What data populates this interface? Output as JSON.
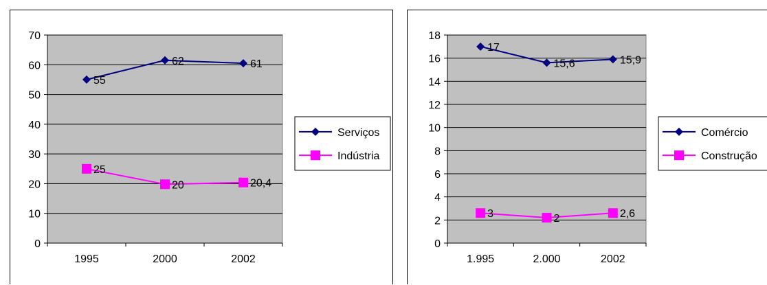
{
  "chart_data": [
    {
      "type": "line",
      "categories": [
        "1995",
        "2000",
        "2002"
      ],
      "ylim": [
        0,
        70
      ],
      "yticks": [
        "0",
        "10",
        "20",
        "30",
        "40",
        "50",
        "60",
        "70"
      ],
      "grid": true,
      "legend_position": "right",
      "plot_background": "#c0c0c0",
      "series": [
        {
          "name": "Serviços",
          "values": [
            55,
            61.5,
            60.5
          ],
          "labels": [
            "55",
            "62",
            "61"
          ],
          "color": "#000080",
          "marker": "diamond"
        },
        {
          "name": "Indústria",
          "values": [
            25,
            19.8,
            20.4
          ],
          "labels": [
            "25",
            "20",
            "20,4"
          ],
          "color": "#ff00ff",
          "marker": "square"
        }
      ]
    },
    {
      "type": "line",
      "categories": [
        "1.995",
        "2.000",
        "2002"
      ],
      "ylim": [
        0,
        18
      ],
      "yticks": [
        "0",
        "2",
        "4",
        "6",
        "8",
        "10",
        "12",
        "14",
        "16",
        "18"
      ],
      "grid": true,
      "legend_position": "right",
      "plot_background": "#c0c0c0",
      "series": [
        {
          "name": "Comércio",
          "values": [
            17,
            15.6,
            15.9
          ],
          "labels": [
            "17",
            "15,6",
            "15,9"
          ],
          "color": "#000080",
          "marker": "diamond"
        },
        {
          "name": "Construção",
          "values": [
            2.6,
            2.2,
            2.6
          ],
          "labels": [
            "3",
            "2",
            "2,6"
          ],
          "color": "#ff00ff",
          "marker": "square"
        }
      ]
    }
  ]
}
